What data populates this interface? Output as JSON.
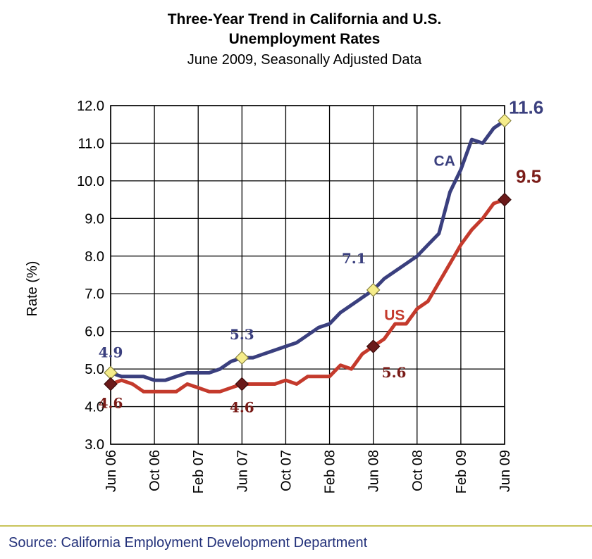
{
  "chart_data": {
    "type": "line",
    "title_line1": "Three-Year Trend in California and U.S.",
    "title_line2": "Unemployment Rates",
    "subtitle": "June 2009, Seasonally Adjusted Data",
    "ylabel": "Rate (%)",
    "xlabel": "",
    "ylim": [
      3.0,
      12.0
    ],
    "yticks": [
      "3.0",
      "4.0",
      "5.0",
      "6.0",
      "7.0",
      "8.0",
      "9.0",
      "10.0",
      "11.0",
      "12.0"
    ],
    "xticks": [
      "Jun 06",
      "Oct 06",
      "Feb 07",
      "Jun 07",
      "Oct 07",
      "Feb 08",
      "Jun 08",
      "Oct 08",
      "Feb 09",
      "Jun 09"
    ],
    "grid": true,
    "colors": {
      "CA": "#3a3f7e",
      "US": "#c43a2c",
      "ca_marker": "#f5ec8a",
      "us_marker": "#6b1a1a"
    },
    "series": [
      {
        "name": "CA",
        "x": [
          "Jun 2006",
          "Jul 2006",
          "Aug 2006",
          "Sep 2006",
          "Oct 2006",
          "Nov 2006",
          "Dec 2006",
          "Jan 2007",
          "Feb 2007",
          "Mar 2007",
          "Apr 2007",
          "May 2007",
          "Jun 2007",
          "Jul 2007",
          "Aug 2007",
          "Sep 2007",
          "Oct 2007",
          "Nov 2007",
          "Dec 2007",
          "Jan 2008",
          "Feb 2008",
          "Mar 2008",
          "Apr 2008",
          "May 2008",
          "Jun 2008",
          "Jul 2008",
          "Aug 2008",
          "Sep 2008",
          "Oct 2008",
          "Nov 2008",
          "Dec 2008",
          "Jan 2009",
          "Feb 2009",
          "Mar 2009",
          "Apr 2009",
          "May 2009",
          "Jun 2009"
        ],
        "values": [
          4.9,
          4.8,
          4.8,
          4.8,
          4.7,
          4.7,
          4.8,
          4.9,
          4.9,
          4.9,
          5.0,
          5.2,
          5.3,
          5.3,
          5.4,
          5.5,
          5.6,
          5.7,
          5.9,
          6.1,
          6.2,
          6.5,
          6.7,
          6.9,
          7.1,
          7.4,
          7.6,
          7.8,
          8.0,
          8.3,
          8.6,
          9.7,
          10.3,
          11.1,
          11.0,
          11.4,
          11.6
        ]
      },
      {
        "name": "US",
        "x": [
          "Jun 2006",
          "Jul 2006",
          "Aug 2006",
          "Sep 2006",
          "Oct 2006",
          "Nov 2006",
          "Dec 2006",
          "Jan 2007",
          "Feb 2007",
          "Mar 2007",
          "Apr 2007",
          "May 2007",
          "Jun 2007",
          "Jul 2007",
          "Aug 2007",
          "Sep 2007",
          "Oct 2007",
          "Nov 2007",
          "Dec 2007",
          "Jan 2008",
          "Feb 2008",
          "Mar 2008",
          "Apr 2008",
          "May 2008",
          "Jun 2008",
          "Jul 2008",
          "Aug 2008",
          "Sep 2008",
          "Oct 2008",
          "Nov 2008",
          "Dec 2008",
          "Jan 2009",
          "Feb 2009",
          "Mar 2009",
          "Apr 2009",
          "May 2009",
          "Jun 2009"
        ],
        "values": [
          4.6,
          4.7,
          4.6,
          4.4,
          4.4,
          4.4,
          4.4,
          4.6,
          4.5,
          4.4,
          4.4,
          4.5,
          4.6,
          4.6,
          4.6,
          4.6,
          4.7,
          4.6,
          4.8,
          4.8,
          4.8,
          5.1,
          5.0,
          5.4,
          5.6,
          5.8,
          6.2,
          6.2,
          6.6,
          6.8,
          7.3,
          7.8,
          8.3,
          8.7,
          9.0,
          9.4,
          9.5
        ]
      }
    ],
    "annotations": [
      {
        "series": "CA",
        "x": "Jun 2006",
        "y": 4.9,
        "label": "4.9"
      },
      {
        "series": "CA",
        "x": "Jun 2007",
        "y": 5.3,
        "label": "5.3"
      },
      {
        "series": "CA",
        "x": "Jun 2008",
        "y": 7.1,
        "label": "7.1"
      },
      {
        "series": "CA",
        "x": "Jun 2009",
        "y": 11.6,
        "label": "11.6"
      },
      {
        "series": "US",
        "x": "Jun 2006",
        "y": 4.6,
        "label": "4.6"
      },
      {
        "series": "US",
        "x": "Jun 2007",
        "y": 4.6,
        "label": "4.6"
      },
      {
        "series": "US",
        "x": "Jun 2008",
        "y": 5.6,
        "label": "5.6"
      },
      {
        "series": "US",
        "x": "Jun 2009",
        "y": 9.5,
        "label": "9.5"
      }
    ],
    "series_labels": {
      "CA": "CA",
      "US": "US"
    }
  },
  "source": "Source: California Employment Development Department"
}
